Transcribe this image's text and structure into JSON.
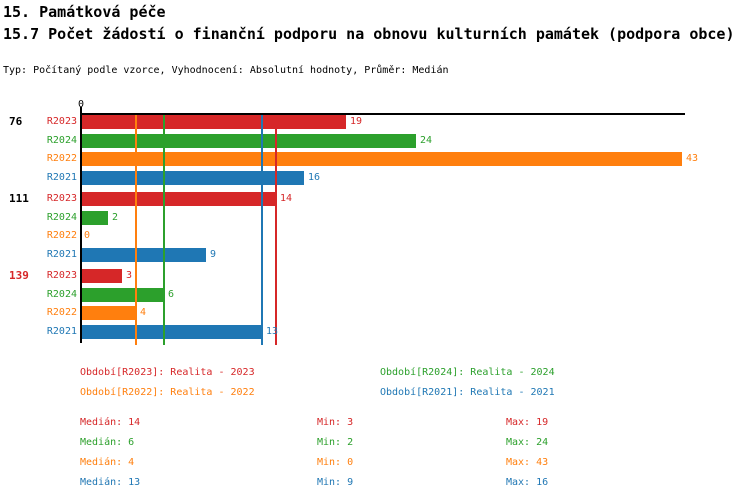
{
  "header": {
    "title": "15. Památková péče",
    "subtitle": "15.7 Počet žádostí o finanční podporu na obnovu kulturních památek (podpora obce)",
    "meta": "Typ: Počítaný podle vzorce, Vyhodnocení: Absolutní hodnoty, Průměr: Medián"
  },
  "colors": {
    "R2023": "#d62728",
    "R2024": "#2ca02c",
    "R2022": "#ff7f0e",
    "R2021": "#1f77b4",
    "axis": "#000000",
    "group_label_default": "#000000",
    "group_label_highlight": "#d62728"
  },
  "chart_data": {
    "type": "bar",
    "orientation": "horizontal",
    "x_axis": {
      "zero_label": "0",
      "min": 0,
      "max_visible": 43,
      "grid": "median-lines-only"
    },
    "series_order": [
      "R2023",
      "R2024",
      "R2022",
      "R2021"
    ],
    "groups": [
      {
        "label": "76",
        "highlighted": false,
        "bars": [
          {
            "series": "R2023",
            "value": 19
          },
          {
            "series": "R2024",
            "value": 24
          },
          {
            "series": "R2022",
            "value": 43
          },
          {
            "series": "R2021",
            "value": 16
          }
        ]
      },
      {
        "label": "111",
        "highlighted": false,
        "bars": [
          {
            "series": "R2023",
            "value": 14
          },
          {
            "series": "R2024",
            "value": 2
          },
          {
            "series": "R2022",
            "value": 0
          },
          {
            "series": "R2021",
            "value": 9
          }
        ]
      },
      {
        "label": "139",
        "highlighted": true,
        "bars": [
          {
            "series": "R2023",
            "value": 3
          },
          {
            "series": "R2024",
            "value": 6
          },
          {
            "series": "R2022",
            "value": 4
          },
          {
            "series": "R2021",
            "value": 13
          }
        ]
      }
    ],
    "median_lines": [
      {
        "series": "R2023",
        "value": 14
      },
      {
        "series": "R2024",
        "value": 6
      },
      {
        "series": "R2022",
        "value": 4
      },
      {
        "series": "R2021",
        "value": 13
      }
    ]
  },
  "legend": {
    "items": [
      {
        "series": "R2023",
        "label": "Období[R2023]: Realita - 2023",
        "col": 0,
        "row": 0
      },
      {
        "series": "R2024",
        "label": "Období[R2024]: Realita - 2024",
        "col": 1,
        "row": 0
      },
      {
        "series": "R2022",
        "label": "Období[R2022]: Realita - 2022",
        "col": 0,
        "row": 1
      },
      {
        "series": "R2021",
        "label": "Období[R2021]: Realita - 2021",
        "col": 1,
        "row": 1
      }
    ]
  },
  "stats": {
    "median_prefix": "Medián",
    "min_prefix": "Min",
    "max_prefix": "Max",
    "rows": [
      {
        "series": "R2023",
        "median": 14,
        "min": 3,
        "max": 19
      },
      {
        "series": "R2024",
        "median": 6,
        "min": 2,
        "max": 24
      },
      {
        "series": "R2022",
        "median": 4,
        "min": 0,
        "max": 43
      },
      {
        "series": "R2021",
        "median": 13,
        "min": 9,
        "max": 16
      }
    ]
  }
}
